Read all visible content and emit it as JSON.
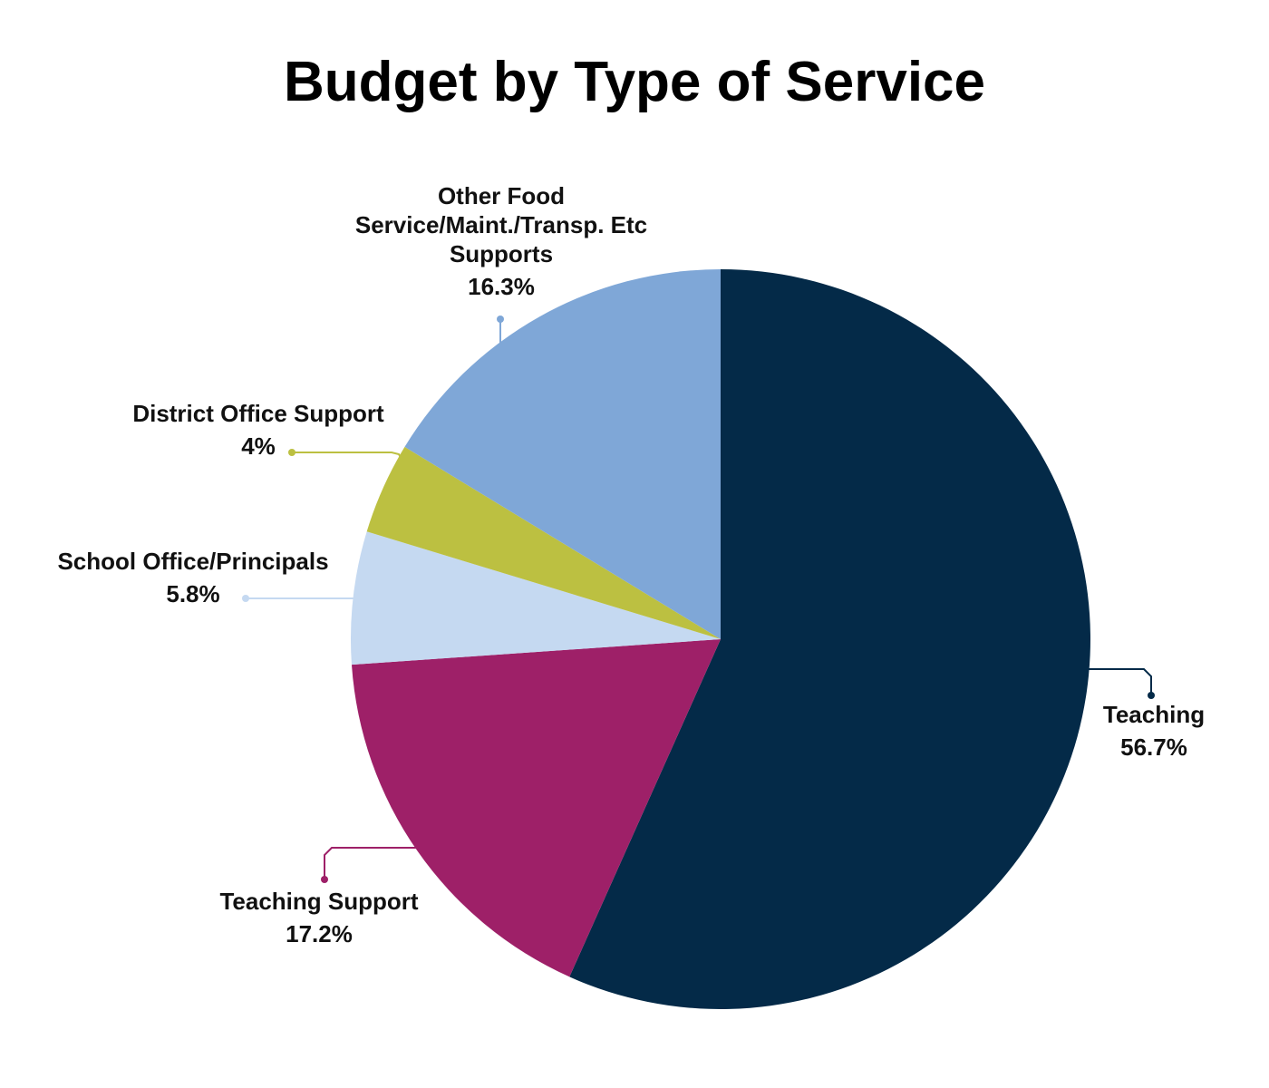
{
  "chart_data": {
    "type": "pie",
    "title": "Budget by Type of Service",
    "categories": [
      "Teaching",
      "Teaching Support",
      "School Office/Principals",
      "District Office Support",
      "Other Food Service/Maint./Transp. Etc Supports"
    ],
    "values": [
      56.7,
      17.2,
      5.8,
      4,
      16.3
    ],
    "value_labels": [
      "56.7%",
      "17.2%",
      "5.8%",
      "4%",
      "16.3%"
    ],
    "colors": [
      "#042a48",
      "#9e2068",
      "#c5d9f1",
      "#bcc041",
      "#7fa7d7"
    ]
  }
}
